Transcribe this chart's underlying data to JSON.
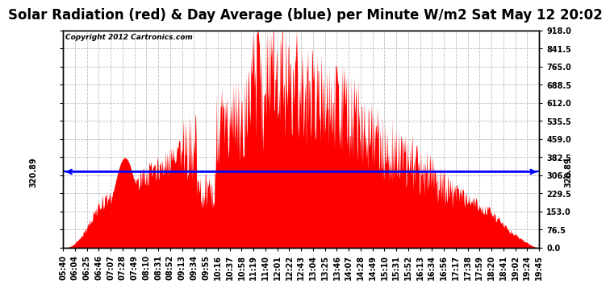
{
  "title": "Solar Radiation (red) & Day Average (blue) per Minute W/m2 Sat May 12 20:02",
  "copyright_text": "Copyright 2012 Cartronics.com",
  "day_average": 320.89,
  "y_min": 0.0,
  "y_max": 918.0,
  "y_ticks": [
    0.0,
    76.5,
    153.0,
    229.5,
    306.0,
    382.5,
    459.0,
    535.5,
    612.0,
    688.5,
    765.0,
    841.5,
    918.0
  ],
  "x_tick_labels": [
    "05:40",
    "06:04",
    "06:25",
    "06:46",
    "07:07",
    "07:28",
    "07:49",
    "08:10",
    "08:31",
    "08:52",
    "09:13",
    "09:34",
    "09:55",
    "10:16",
    "10:37",
    "10:58",
    "11:19",
    "11:40",
    "12:01",
    "12:22",
    "12:43",
    "13:04",
    "13:25",
    "13:46",
    "14:07",
    "14:28",
    "14:49",
    "15:10",
    "15:31",
    "15:52",
    "16:13",
    "16:34",
    "16:56",
    "17:17",
    "17:38",
    "17:59",
    "18:20",
    "18:41",
    "19:02",
    "19:24",
    "19:45"
  ],
  "area_color": "#FF0000",
  "line_color": "#0000FF",
  "grid_color": "#BBBBBB",
  "background_color": "#FFFFFF",
  "title_fontsize": 12,
  "tick_fontsize": 7,
  "copyright_fontsize": 6.5
}
